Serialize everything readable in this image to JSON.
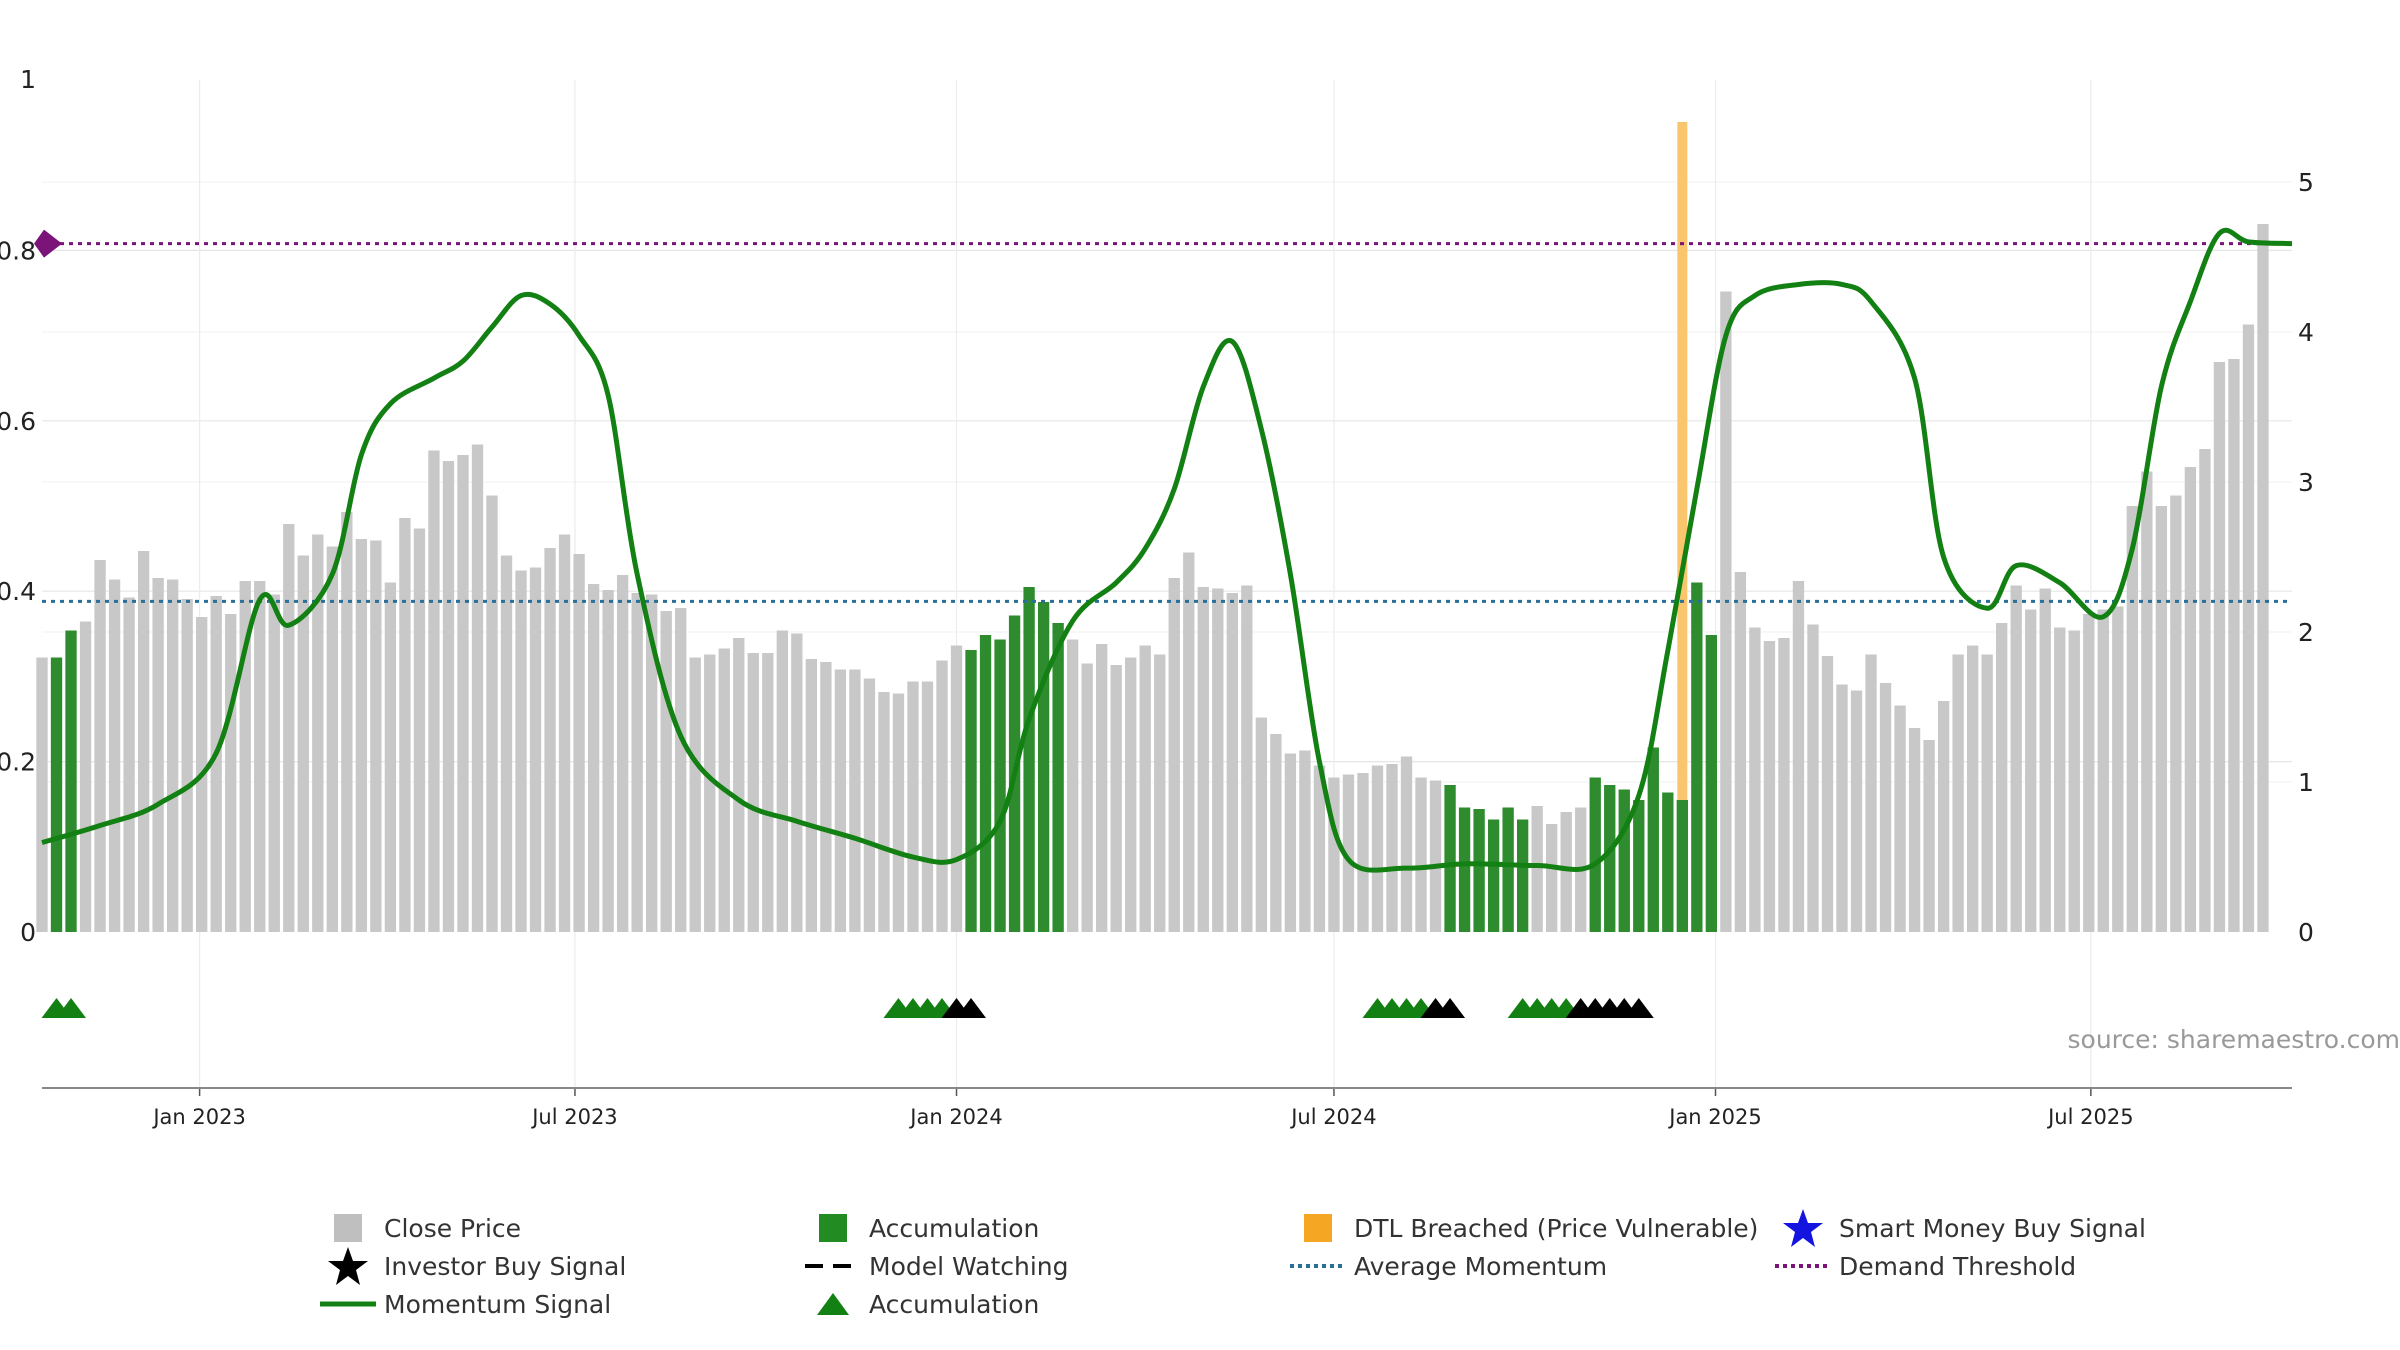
{
  "chart_data": {
    "type": "bar",
    "source_text": "source: sharemaestro.com",
    "left_axis": {
      "ticks": [
        "0",
        "0.2",
        "0.4",
        "0.6",
        "0.8",
        "1"
      ],
      "range": [
        0,
        1
      ]
    },
    "right_axis": {
      "ticks": [
        "0",
        "1",
        "2",
        "3",
        "4",
        "5"
      ],
      "range": [
        0,
        5.68
      ]
    },
    "x_ticks": [
      "Jan 2023",
      "Jul 2023",
      "Jan 2024",
      "Jul 2024",
      "Jan 2025",
      "Jul 2025"
    ],
    "x_tick_dates": [
      "2023-01-01",
      "2023-07-01",
      "2024-01-01",
      "2024-07-01",
      "2025-01-01",
      "2025-07-01"
    ],
    "x_range": [
      "2022-10-17",
      "2025-10-06"
    ],
    "bar_start_date": "2022-10-17",
    "bar_interval_days": 7,
    "close_price": [
      1.83,
      1.83,
      2.01,
      2.07,
      2.48,
      2.35,
      2.23,
      2.54,
      2.36,
      2.35,
      2.22,
      2.1,
      2.24,
      2.12,
      2.34,
      2.34,
      2.25,
      2.72,
      2.51,
      2.65,
      2.57,
      2.8,
      2.62,
      2.61,
      2.33,
      2.76,
      2.69,
      3.21,
      3.14,
      3.18,
      3.25,
      2.91,
      2.51,
      2.41,
      2.43,
      2.56,
      2.65,
      2.52,
      2.32,
      2.28,
      2.38,
      2.26,
      2.25,
      2.14,
      2.16,
      1.83,
      1.85,
      1.89,
      1.96,
      1.86,
      1.86,
      2.01,
      1.99,
      1.82,
      1.8,
      1.75,
      1.75,
      1.69,
      1.6,
      1.59,
      1.67,
      1.67,
      1.81,
      1.91,
      1.88,
      1.98,
      1.95,
      2.11,
      2.3,
      2.2,
      2.06,
      1.95,
      1.79,
      1.92,
      1.78,
      1.83,
      1.91,
      1.85,
      2.36,
      2.53,
      2.3,
      2.29,
      2.26,
      2.31,
      1.43,
      1.32,
      1.19,
      1.21,
      1.11,
      1.03,
      1.05,
      1.06,
      1.11,
      1.12,
      1.17,
      1.03,
      1.01,
      0.98,
      0.83,
      0.82,
      0.75,
      0.83,
      0.75,
      0.84,
      0.72,
      0.8,
      0.83,
      1.03,
      0.98,
      0.95,
      0.88,
      1.23,
      0.93,
      0.88,
      2.33,
      1.98,
      4.27,
      2.4,
      2.03,
      1.94,
      1.96,
      2.34,
      2.05,
      1.84,
      1.65,
      1.61,
      1.85,
      1.66,
      1.51,
      1.36,
      1.28,
      1.54,
      1.85,
      1.91,
      1.85,
      2.06,
      2.31,
      2.15,
      2.29,
      2.03,
      2.01,
      2.12,
      2.15,
      2.17,
      2.84,
      3.07,
      2.84,
      2.91,
      3.1,
      3.22,
      3.8,
      3.82,
      4.05,
      4.72
    ],
    "accumulation_bars": [
      1,
      2,
      64,
      65,
      66,
      67,
      68,
      69,
      70,
      97,
      98,
      99,
      100,
      101,
      102,
      107,
      108,
      109,
      110,
      111,
      112,
      113,
      114,
      115
    ],
    "momentum_dates": [
      "2022-10-17",
      "2022-11-14",
      "2022-12-12",
      "2023-01-09",
      "2023-01-30",
      "2023-02-13",
      "2023-03-06",
      "2023-03-20",
      "2023-04-03",
      "2023-04-24",
      "2023-05-08",
      "2023-05-22",
      "2023-06-05",
      "2023-06-19",
      "2023-07-03",
      "2023-07-17",
      "2023-07-31",
      "2023-08-21",
      "2023-09-18",
      "2023-10-16",
      "2023-11-13",
      "2023-12-11",
      "2024-01-01",
      "2024-01-22",
      "2024-02-05",
      "2024-02-26",
      "2024-03-18",
      "2024-04-01",
      "2024-04-15",
      "2024-04-29",
      "2024-05-13",
      "2024-05-27",
      "2024-06-10",
      "2024-06-24",
      "2024-07-08",
      "2024-08-05",
      "2024-09-02",
      "2024-10-07",
      "2024-11-04",
      "2024-11-25",
      "2024-12-09",
      "2024-12-23",
      "2025-01-06",
      "2025-01-20",
      "2025-02-10",
      "2025-03-03",
      "2025-03-17",
      "2025-04-07",
      "2025-04-21",
      "2025-05-12",
      "2025-05-26",
      "2025-06-16",
      "2025-07-07",
      "2025-07-21",
      "2025-08-04",
      "2025-08-18",
      "2025-09-01",
      "2025-09-15",
      "2025-10-06"
    ],
    "momentum": [
      0.105,
      0.125,
      0.15,
      0.21,
      0.39,
      0.36,
      0.42,
      0.56,
      0.62,
      0.65,
      0.67,
      0.71,
      0.747,
      0.737,
      0.7,
      0.63,
      0.42,
      0.23,
      0.155,
      0.13,
      0.11,
      0.088,
      0.085,
      0.13,
      0.25,
      0.365,
      0.41,
      0.45,
      0.52,
      0.64,
      0.693,
      0.59,
      0.42,
      0.2,
      0.085,
      0.075,
      0.08,
      0.078,
      0.08,
      0.16,
      0.33,
      0.52,
      0.7,
      0.747,
      0.76,
      0.76,
      0.74,
      0.65,
      0.44,
      0.38,
      0.43,
      0.41,
      0.37,
      0.45,
      0.64,
      0.74,
      0.82,
      0.81,
      0.808
    ],
    "average_momentum": 0.388,
    "demand_threshold": 0.808,
    "dtl_breached_date": "2024-12-16",
    "accumulation_markers": [
      "2022-10-24",
      "2022-10-31",
      "2023-12-04",
      "2023-12-11",
      "2023-12-18",
      "2023-12-25",
      "2024-07-22",
      "2024-07-29",
      "2024-08-05",
      "2024-08-12",
      "2024-09-30",
      "2024-10-07",
      "2024-10-14",
      "2024-10-21"
    ],
    "watching_markers": [
      "2024-01-01",
      "2024-01-08",
      "2024-08-19",
      "2024-08-26",
      "2024-10-28",
      "2024-11-04",
      "2024-11-11",
      "2024-11-18",
      "2024-11-25"
    ],
    "legend": [
      {
        "label": "Close Price",
        "symbol": "square",
        "color": "#bfbfbf"
      },
      {
        "label": "Accumulation",
        "symbol": "square",
        "color": "#228b22"
      },
      {
        "label": "DTL Breached (Price Vulnerable)",
        "symbol": "square",
        "color": "#f5a623"
      },
      {
        "label": "Smart Money Buy Signal",
        "symbol": "star",
        "color": "#1414e0"
      },
      {
        "label": "Investor Buy Signal",
        "symbol": "star",
        "color": "#000000"
      },
      {
        "label": "Model Watching",
        "symbol": "dash",
        "color": "#000000"
      },
      {
        "label": "Average Momentum",
        "symbol": "dotline",
        "color": "#2a6f97"
      },
      {
        "label": "Demand Threshold",
        "symbol": "dotline",
        "color": "#7b1378"
      },
      {
        "label": "Momentum Signal",
        "symbol": "line",
        "color": "#138013"
      },
      {
        "label": "Accumulation",
        "symbol": "triangle",
        "color": "#138013"
      }
    ],
    "colors": {
      "close_bar": "#c8c8c8",
      "accumulation_bar": "#2e8b2e",
      "dtl_band": "#f9c66e",
      "momentum_line": "#138013",
      "average_line": "#2a6f97",
      "threshold_line": "#7b1378",
      "marker_green": "#138013",
      "marker_black": "#000000",
      "grid": "#e6e6e6",
      "source_text": "#999999"
    }
  }
}
